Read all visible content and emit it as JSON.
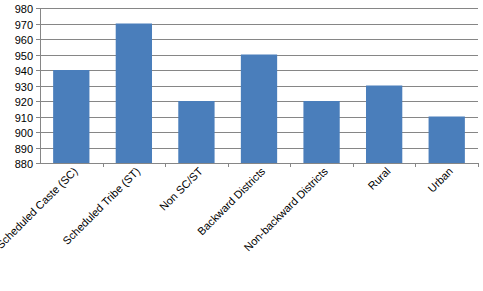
{
  "chart_data": {
    "type": "bar",
    "categories": [
      "Scheduled Caste (SC)",
      "Scheduled Tribe (ST)",
      "Non SC/ST",
      "Backward Districts",
      "Non-backward Districts",
      "Rural",
      "Urban"
    ],
    "values": [
      940,
      970,
      920,
      950,
      920,
      930,
      910
    ],
    "color": "#4a7ebb",
    "ylim": [
      880,
      980
    ],
    "yticks": [
      880,
      890,
      900,
      910,
      920,
      930,
      940,
      950,
      960,
      970,
      980
    ],
    "grid": true
  }
}
